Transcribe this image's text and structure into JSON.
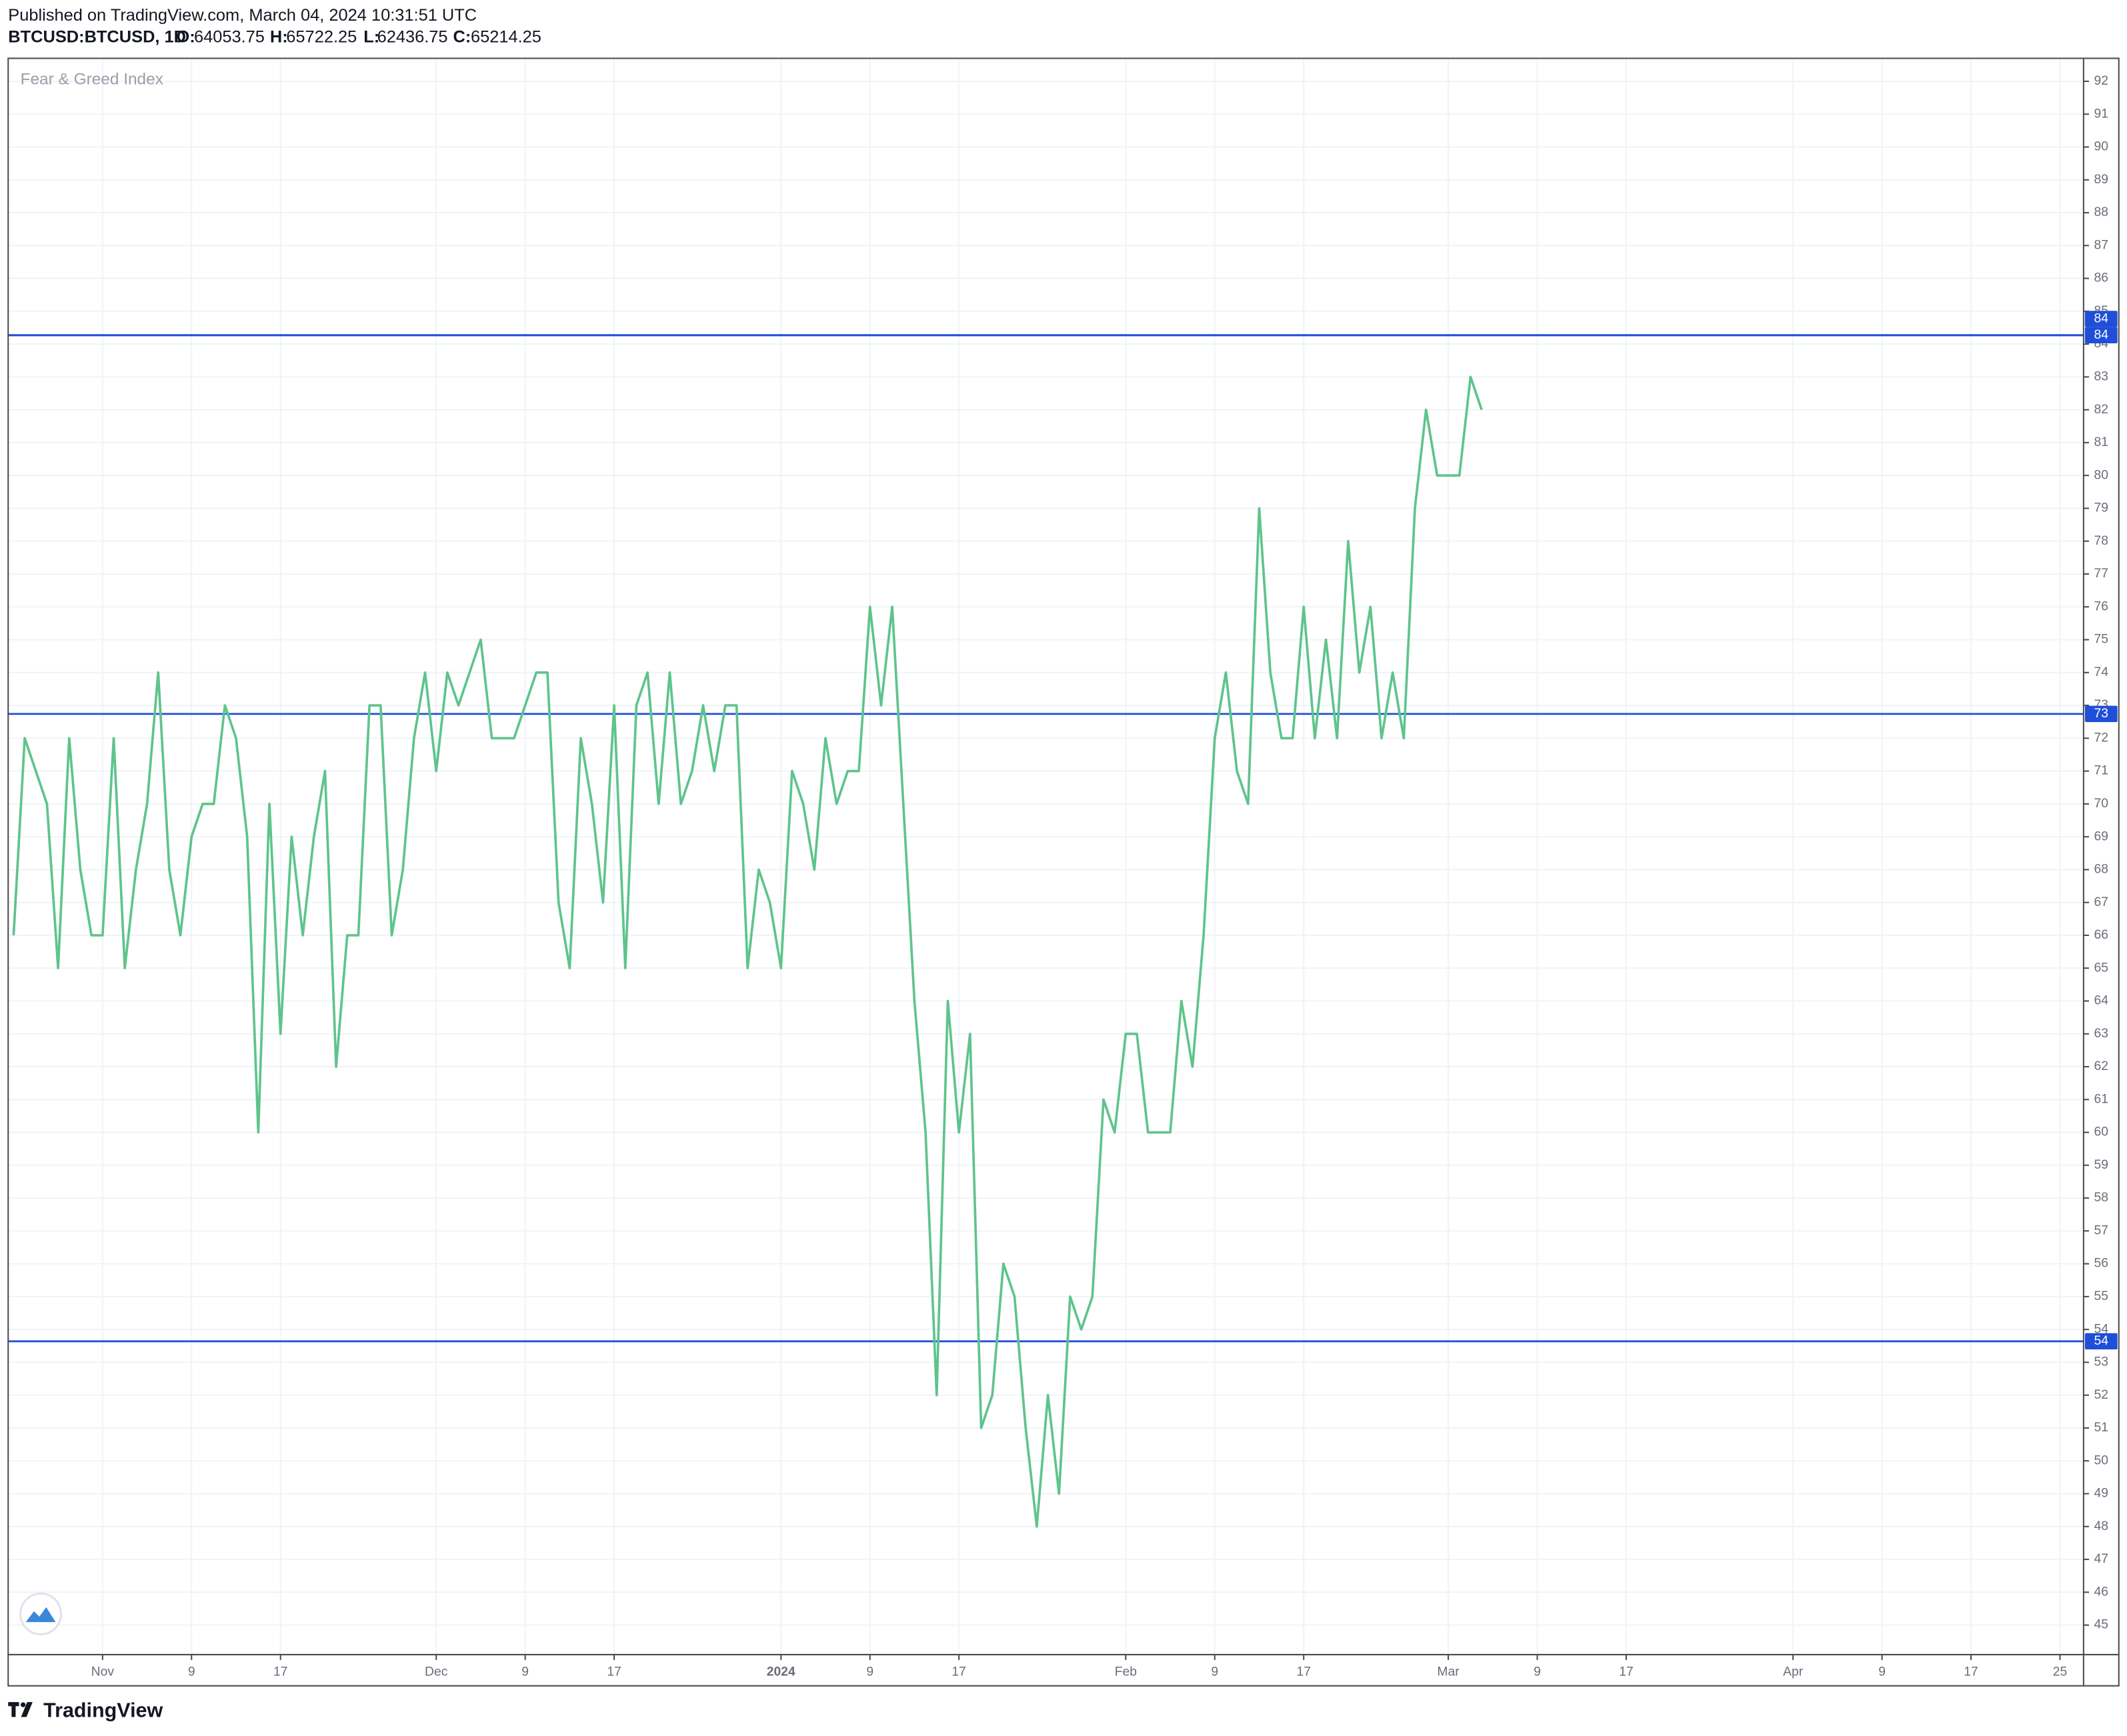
{
  "header": {
    "published": "Published on TradingView.com, March 04, 2024 10:31:51 UTC",
    "symbol": "BTCUSD:BTCUSD, 1D",
    "ohlc": [
      {
        "key": "O:",
        "value": "64053.75"
      },
      {
        "key": "H:",
        "value": "65722.25"
      },
      {
        "key": "L:",
        "value": "62436.75"
      },
      {
        "key": "C:",
        "value": "65214.25"
      }
    ]
  },
  "footer": {
    "brand": "TradingView"
  },
  "chart_data": {
    "type": "line",
    "x": [
      "2023-10-24",
      "2023-10-25",
      "2023-10-26",
      "2023-10-27",
      "2023-10-28",
      "2023-10-29",
      "2023-10-30",
      "2023-10-31",
      "2023-11-01",
      "2023-11-02",
      "2023-11-03",
      "2023-11-04",
      "2023-11-05",
      "2023-11-06",
      "2023-11-07",
      "2023-11-08",
      "2023-11-09",
      "2023-11-10",
      "2023-11-11",
      "2023-11-12",
      "2023-11-13",
      "2023-11-14",
      "2023-11-15",
      "2023-11-16",
      "2023-11-17",
      "2023-11-18",
      "2023-11-19",
      "2023-11-20",
      "2023-11-21",
      "2023-11-22",
      "2023-11-23",
      "2023-11-24",
      "2023-11-25",
      "2023-11-26",
      "2023-11-27",
      "2023-11-28",
      "2023-11-29",
      "2023-11-30",
      "2023-12-01",
      "2023-12-02",
      "2023-12-03",
      "2023-12-04",
      "2023-12-05",
      "2023-12-06",
      "2023-12-07",
      "2023-12-08",
      "2023-12-09",
      "2023-12-10",
      "2023-12-11",
      "2023-12-12",
      "2023-12-13",
      "2023-12-14",
      "2023-12-15",
      "2023-12-16",
      "2023-12-17",
      "2023-12-18",
      "2023-12-19",
      "2023-12-20",
      "2023-12-21",
      "2023-12-22",
      "2023-12-23",
      "2023-12-24",
      "2023-12-25",
      "2023-12-26",
      "2023-12-27",
      "2023-12-28",
      "2023-12-29",
      "2023-12-30",
      "2023-12-31",
      "2024-01-01",
      "2024-01-02",
      "2024-01-03",
      "2024-01-04",
      "2024-01-05",
      "2024-01-06",
      "2024-01-07",
      "2024-01-08",
      "2024-01-09",
      "2024-01-10",
      "2024-01-11",
      "2024-01-12",
      "2024-01-13",
      "2024-01-14",
      "2024-01-15",
      "2024-01-16",
      "2024-01-17",
      "2024-01-18",
      "2024-01-19",
      "2024-01-20",
      "2024-01-21",
      "2024-01-22",
      "2024-01-23",
      "2024-01-24",
      "2024-01-25",
      "2024-01-26",
      "2024-01-27",
      "2024-01-28",
      "2024-01-29",
      "2024-01-30",
      "2024-01-31",
      "2024-02-01",
      "2024-02-02",
      "2024-02-03",
      "2024-02-04",
      "2024-02-05",
      "2024-02-06",
      "2024-02-07",
      "2024-02-08",
      "2024-02-09",
      "2024-02-10",
      "2024-02-11",
      "2024-02-12",
      "2024-02-13",
      "2024-02-14",
      "2024-02-15",
      "2024-02-16",
      "2024-02-17",
      "2024-02-18",
      "2024-02-19",
      "2024-02-20",
      "2024-02-21",
      "2024-02-22",
      "2024-02-23",
      "2024-02-24",
      "2024-02-25",
      "2024-02-26",
      "2024-02-27",
      "2024-02-28",
      "2024-02-29",
      "2024-03-01",
      "2024-03-02",
      "2024-03-03",
      "2024-03-04"
    ],
    "series": [
      {
        "name": "Fear & Greed Index",
        "color": "#5ec48c",
        "values": [
          66,
          72,
          71,
          70,
          65,
          72,
          68,
          66,
          66,
          72,
          65,
          68,
          70,
          74,
          68,
          66,
          69,
          70,
          70,
          73,
          72,
          69,
          60,
          70,
          63,
          69,
          66,
          69,
          71,
          62,
          66,
          66,
          73,
          73,
          66,
          68,
          72,
          74,
          71,
          74,
          73,
          74,
          75,
          72,
          72,
          72,
          73,
          74,
          74,
          67,
          65,
          72,
          70,
          67,
          73,
          65,
          73,
          74,
          70,
          74,
          70,
          71,
          73,
          71,
          73,
          73,
          65,
          68,
          67,
          65,
          71,
          70,
          68,
          72,
          70,
          71,
          71,
          76,
          73,
          76,
          70,
          64,
          60,
          52,
          64,
          60,
          63,
          51,
          52,
          56,
          55,
          51,
          48,
          52,
          49,
          55,
          54,
          55,
          61,
          60,
          63,
          63,
          60,
          60,
          60,
          64,
          62,
          66,
          72,
          74,
          71,
          70,
          79,
          74,
          72,
          72,
          76,
          72,
          75,
          72,
          78,
          74,
          76,
          72,
          74,
          72,
          79,
          82,
          80,
          80,
          80,
          83,
          82
        ]
      }
    ],
    "hlines": [
      {
        "value": 84.27,
        "label": "84"
      },
      {
        "value": 84.27,
        "label": "84"
      },
      {
        "value": 72.74,
        "label": "73"
      },
      {
        "value": 53.64,
        "label": "54"
      }
    ],
    "hline_color": "#1f4fd8",
    "xlim": [
      "2023-10-24",
      "2024-04-27"
    ],
    "xticks": [
      {
        "value": "2023-11-01",
        "label": "Nov"
      },
      {
        "value": "2023-11-09",
        "label": "9"
      },
      {
        "value": "2023-11-17",
        "label": "17"
      },
      {
        "value": "2023-12-01",
        "label": "Dec"
      },
      {
        "value": "2023-12-09",
        "label": "9"
      },
      {
        "value": "2023-12-17",
        "label": "17"
      },
      {
        "value": "2024-01-01",
        "label": "2024"
      },
      {
        "value": "2024-01-09",
        "label": "9"
      },
      {
        "value": "2024-01-17",
        "label": "17"
      },
      {
        "value": "2024-02-01",
        "label": "Feb"
      },
      {
        "value": "2024-02-09",
        "label": "9"
      },
      {
        "value": "2024-02-17",
        "label": "17"
      },
      {
        "value": "2024-03-01",
        "label": "Mar"
      },
      {
        "value": "2024-03-09",
        "label": "9"
      },
      {
        "value": "2024-03-17",
        "label": "17"
      },
      {
        "value": "2024-04-01",
        "label": "Apr"
      },
      {
        "value": "2024-04-09",
        "label": "9"
      },
      {
        "value": "2024-04-17",
        "label": "17"
      },
      {
        "value": "2024-04-25",
        "label": "25"
      }
    ],
    "ylim": [
      44.1,
      92.7
    ],
    "yticks": [
      45,
      46,
      47,
      48,
      49,
      50,
      51,
      52,
      53,
      54,
      55,
      56,
      57,
      58,
      59,
      60,
      61,
      62,
      63,
      64,
      65,
      66,
      67,
      68,
      69,
      70,
      71,
      72,
      73,
      74,
      75,
      76,
      77,
      78,
      79,
      80,
      81,
      82,
      83,
      84,
      85,
      86,
      87,
      88,
      89,
      90,
      91,
      92
    ],
    "grid": true
  }
}
